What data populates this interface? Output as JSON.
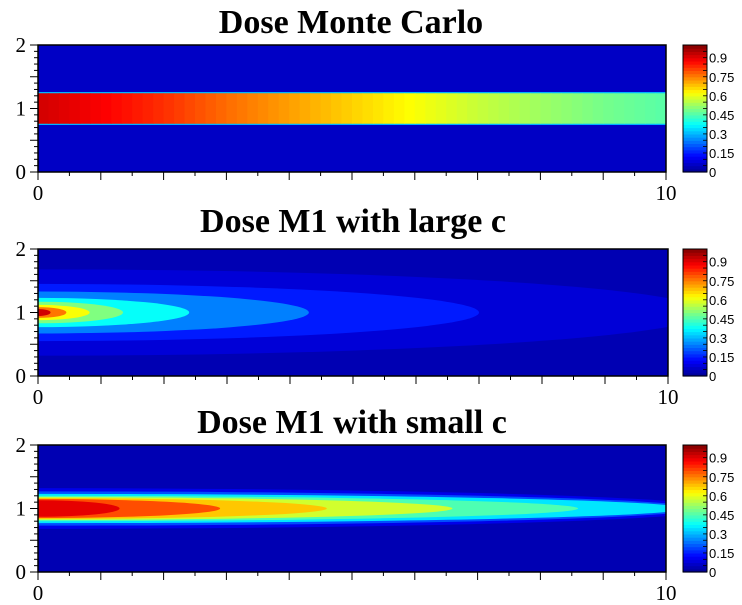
{
  "chart_data": [
    {
      "type": "heatmap",
      "title": "Dose Monte Carlo",
      "xlabel": "",
      "ylabel": "",
      "xlim": [
        0,
        10
      ],
      "ylim": [
        0,
        2
      ],
      "x_ticks": [
        "0",
        "10"
      ],
      "y_ticks": [
        "0",
        "1",
        "2"
      ],
      "colorbar": {
        "range": [
          0,
          1
        ],
        "ticks": [
          "0",
          "0.15",
          "0.3",
          "0.45",
          "0.6",
          "0.75",
          "0.9"
        ]
      },
      "colormap": [
        "#00008f",
        "#0000ff",
        "#0080ff",
        "#00ffff",
        "#80ff80",
        "#ffff00",
        "#ff8000",
        "#ff0000",
        "#800000"
      ],
      "background_value": 0.06,
      "beam": {
        "y_center": 1.0,
        "half_width": 0.24,
        "edge": 0.02,
        "x": [
          0,
          1,
          2,
          3,
          4,
          5,
          6,
          7,
          8,
          9,
          10
        ],
        "dose": [
          0.92,
          0.88,
          0.83,
          0.77,
          0.72,
          0.67,
          0.62,
          0.57,
          0.53,
          0.49,
          0.46
        ]
      }
    },
    {
      "type": "heatmap",
      "title": "Dose M1 with large c",
      "xlabel": "",
      "ylabel": "",
      "xlim": [
        0,
        10
      ],
      "ylim": [
        0,
        2
      ],
      "x_ticks": [
        "0",
        "10"
      ],
      "y_ticks": [
        "0",
        "1",
        "2"
      ],
      "colorbar": {
        "range": [
          0,
          1
        ],
        "ticks": [
          "0",
          "0.15",
          "0.3",
          "0.45",
          "0.6",
          "0.75",
          "0.9"
        ]
      },
      "colormap": [
        "#00008f",
        "#0000ff",
        "#0080ff",
        "#00ffff",
        "#80ff80",
        "#ffff00",
        "#ff8000",
        "#ff0000",
        "#800000"
      ],
      "contours": [
        {
          "level": 0.08,
          "x_start": 0,
          "x_end": 10.6,
          "half_width": 0.68
        },
        {
          "level": 0.15,
          "x_start": 0,
          "x_end": 7.0,
          "half_width": 0.45
        },
        {
          "level": 0.25,
          "x_start": 0,
          "x_end": 4.3,
          "half_width": 0.33
        },
        {
          "level": 0.38,
          "x_start": 0,
          "x_end": 2.4,
          "half_width": 0.23
        },
        {
          "level": 0.5,
          "x_start": 0,
          "x_end": 1.35,
          "half_width": 0.17
        },
        {
          "level": 0.62,
          "x_start": 0,
          "x_end": 0.82,
          "half_width": 0.12
        },
        {
          "level": 0.76,
          "x_start": 0,
          "x_end": 0.45,
          "half_width": 0.085
        },
        {
          "level": 0.92,
          "x_start": 0,
          "x_end": 0.2,
          "half_width": 0.055
        }
      ]
    },
    {
      "type": "heatmap",
      "title": "Dose M1 with small c",
      "xlabel": "",
      "ylabel": "",
      "xlim": [
        0,
        10
      ],
      "ylim": [
        0,
        2
      ],
      "x_ticks": [
        "0",
        "10"
      ],
      "y_ticks": [
        "0",
        "1",
        "2"
      ],
      "colorbar": {
        "range": [
          0,
          1
        ],
        "ticks": [
          "0",
          "0.15",
          "0.3",
          "0.45",
          "0.6",
          "0.75",
          "0.9"
        ]
      },
      "colormap": [
        "#00008f",
        "#0000ff",
        "#0080ff",
        "#00ffff",
        "#80ff80",
        "#ffff00",
        "#ff8000",
        "#ff0000",
        "#800000"
      ],
      "contours": [
        {
          "level": 0.1,
          "x_start": 0,
          "x_end": 10.8,
          "half_width": 0.32
        },
        {
          "level": 0.2,
          "x_start": 0,
          "x_end": 10.5,
          "half_width": 0.27
        },
        {
          "level": 0.35,
          "x_start": 0,
          "x_end": 10.3,
          "half_width": 0.23
        },
        {
          "level": 0.45,
          "x_start": 0,
          "x_end": 8.6,
          "half_width": 0.2
        },
        {
          "level": 0.58,
          "x_start": 0,
          "x_end": 6.6,
          "half_width": 0.18
        },
        {
          "level": 0.68,
          "x_start": 0,
          "x_end": 4.6,
          "half_width": 0.165
        },
        {
          "level": 0.8,
          "x_start": 0,
          "x_end": 2.9,
          "half_width": 0.15
        },
        {
          "level": 0.9,
          "x_start": 0,
          "x_end": 1.3,
          "half_width": 0.13
        }
      ]
    }
  ]
}
